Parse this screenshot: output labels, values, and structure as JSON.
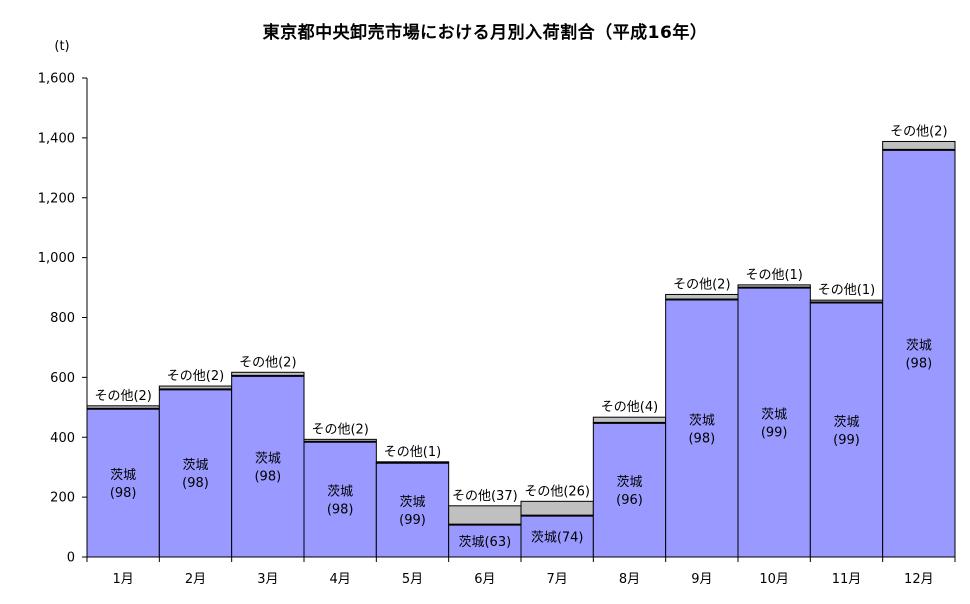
{
  "chart_data": {
    "type": "bar",
    "stacked": true,
    "title": "東京都中央卸売市場における月別入荷割合（平成16年）",
    "unit_label": "(t)",
    "ylim": [
      0,
      1600
    ],
    "yticks": [
      0,
      200,
      400,
      600,
      800,
      1000,
      1200,
      1400,
      1600
    ],
    "ytick_labels": [
      "0",
      "200",
      "400",
      "600",
      "800",
      "1,000",
      "1,200",
      "1,400",
      "1,600"
    ],
    "categories": [
      "1月",
      "2月",
      "3月",
      "4月",
      "5月",
      "6月",
      "7月",
      "8月",
      "9月",
      "10月",
      "11月",
      "12月"
    ],
    "series": [
      {
        "name": "茨城",
        "color": "#9999ff",
        "values": [
          495,
          560,
          605,
          385,
          315,
          108,
          138,
          448,
          860,
          900,
          850,
          1360
        ],
        "labels": [
          "茨城",
          "茨城",
          "茨城",
          "茨城",
          "茨城",
          "茨城(63)",
          "茨城(74)",
          "茨城",
          "茨城",
          "茨城",
          "茨城",
          "茨城"
        ],
        "share_labels": [
          "(98)",
          "(98)",
          "(98)",
          "(98)",
          "(99)",
          "",
          "",
          "(96)",
          "(98)",
          "(99)",
          "(99)",
          "(98)"
        ]
      },
      {
        "name": "その他",
        "color": "#c0c0c0",
        "values": [
          10,
          11,
          12,
          8,
          3,
          63,
          48,
          19,
          17,
          9,
          8,
          28
        ],
        "labels": [
          "その他(2)",
          "その他(2)",
          "その他(2)",
          "その他(2)",
          "その他(1)",
          "その他(37)",
          "その他(26)",
          "その他(4)",
          "その他(2)",
          "その他(1)",
          "その他(1)",
          "その他(2)"
        ]
      }
    ]
  }
}
